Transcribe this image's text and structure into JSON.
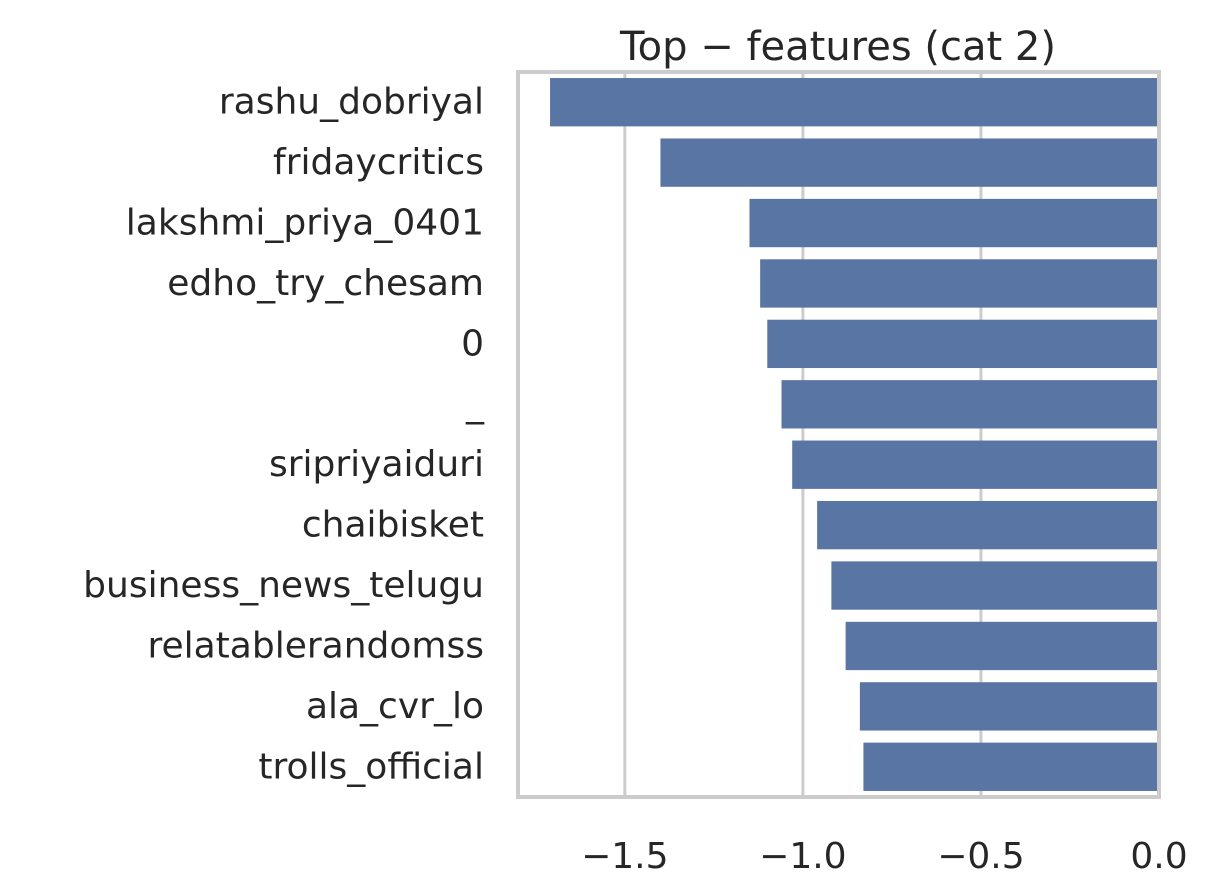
{
  "chart_data": {
    "type": "bar",
    "orientation": "horizontal",
    "title": "Top − features (cat 2)",
    "xlabel": "",
    "ylabel": "",
    "categories": [
      "rashu_dobriyal",
      "fridaycritics",
      "lakshmi_priya_0401",
      "edho_try_chesam",
      "0",
      "_",
      "sripriyaiduri",
      "chaibisket",
      "business_news_telugu",
      "relatablerandomss",
      "ala_cvr_lo",
      "trolls_official"
    ],
    "values": [
      -1.71,
      -1.4,
      -1.15,
      -1.12,
      -1.1,
      -1.06,
      -1.03,
      -0.96,
      -0.92,
      -0.88,
      -0.84,
      -0.83
    ],
    "xlim": [
      -1.8,
      0.0
    ],
    "xticks": [
      {
        "value": -1.5,
        "label": "−1.5"
      },
      {
        "value": -1.0,
        "label": "−1.0"
      },
      {
        "value": -0.5,
        "label": "−0.5"
      },
      {
        "value": 0.0,
        "label": "0.0"
      }
    ],
    "grid": true,
    "bar_color": "#5975a4",
    "grid_color": "#cccccc",
    "frame_color": "#cccccc"
  }
}
